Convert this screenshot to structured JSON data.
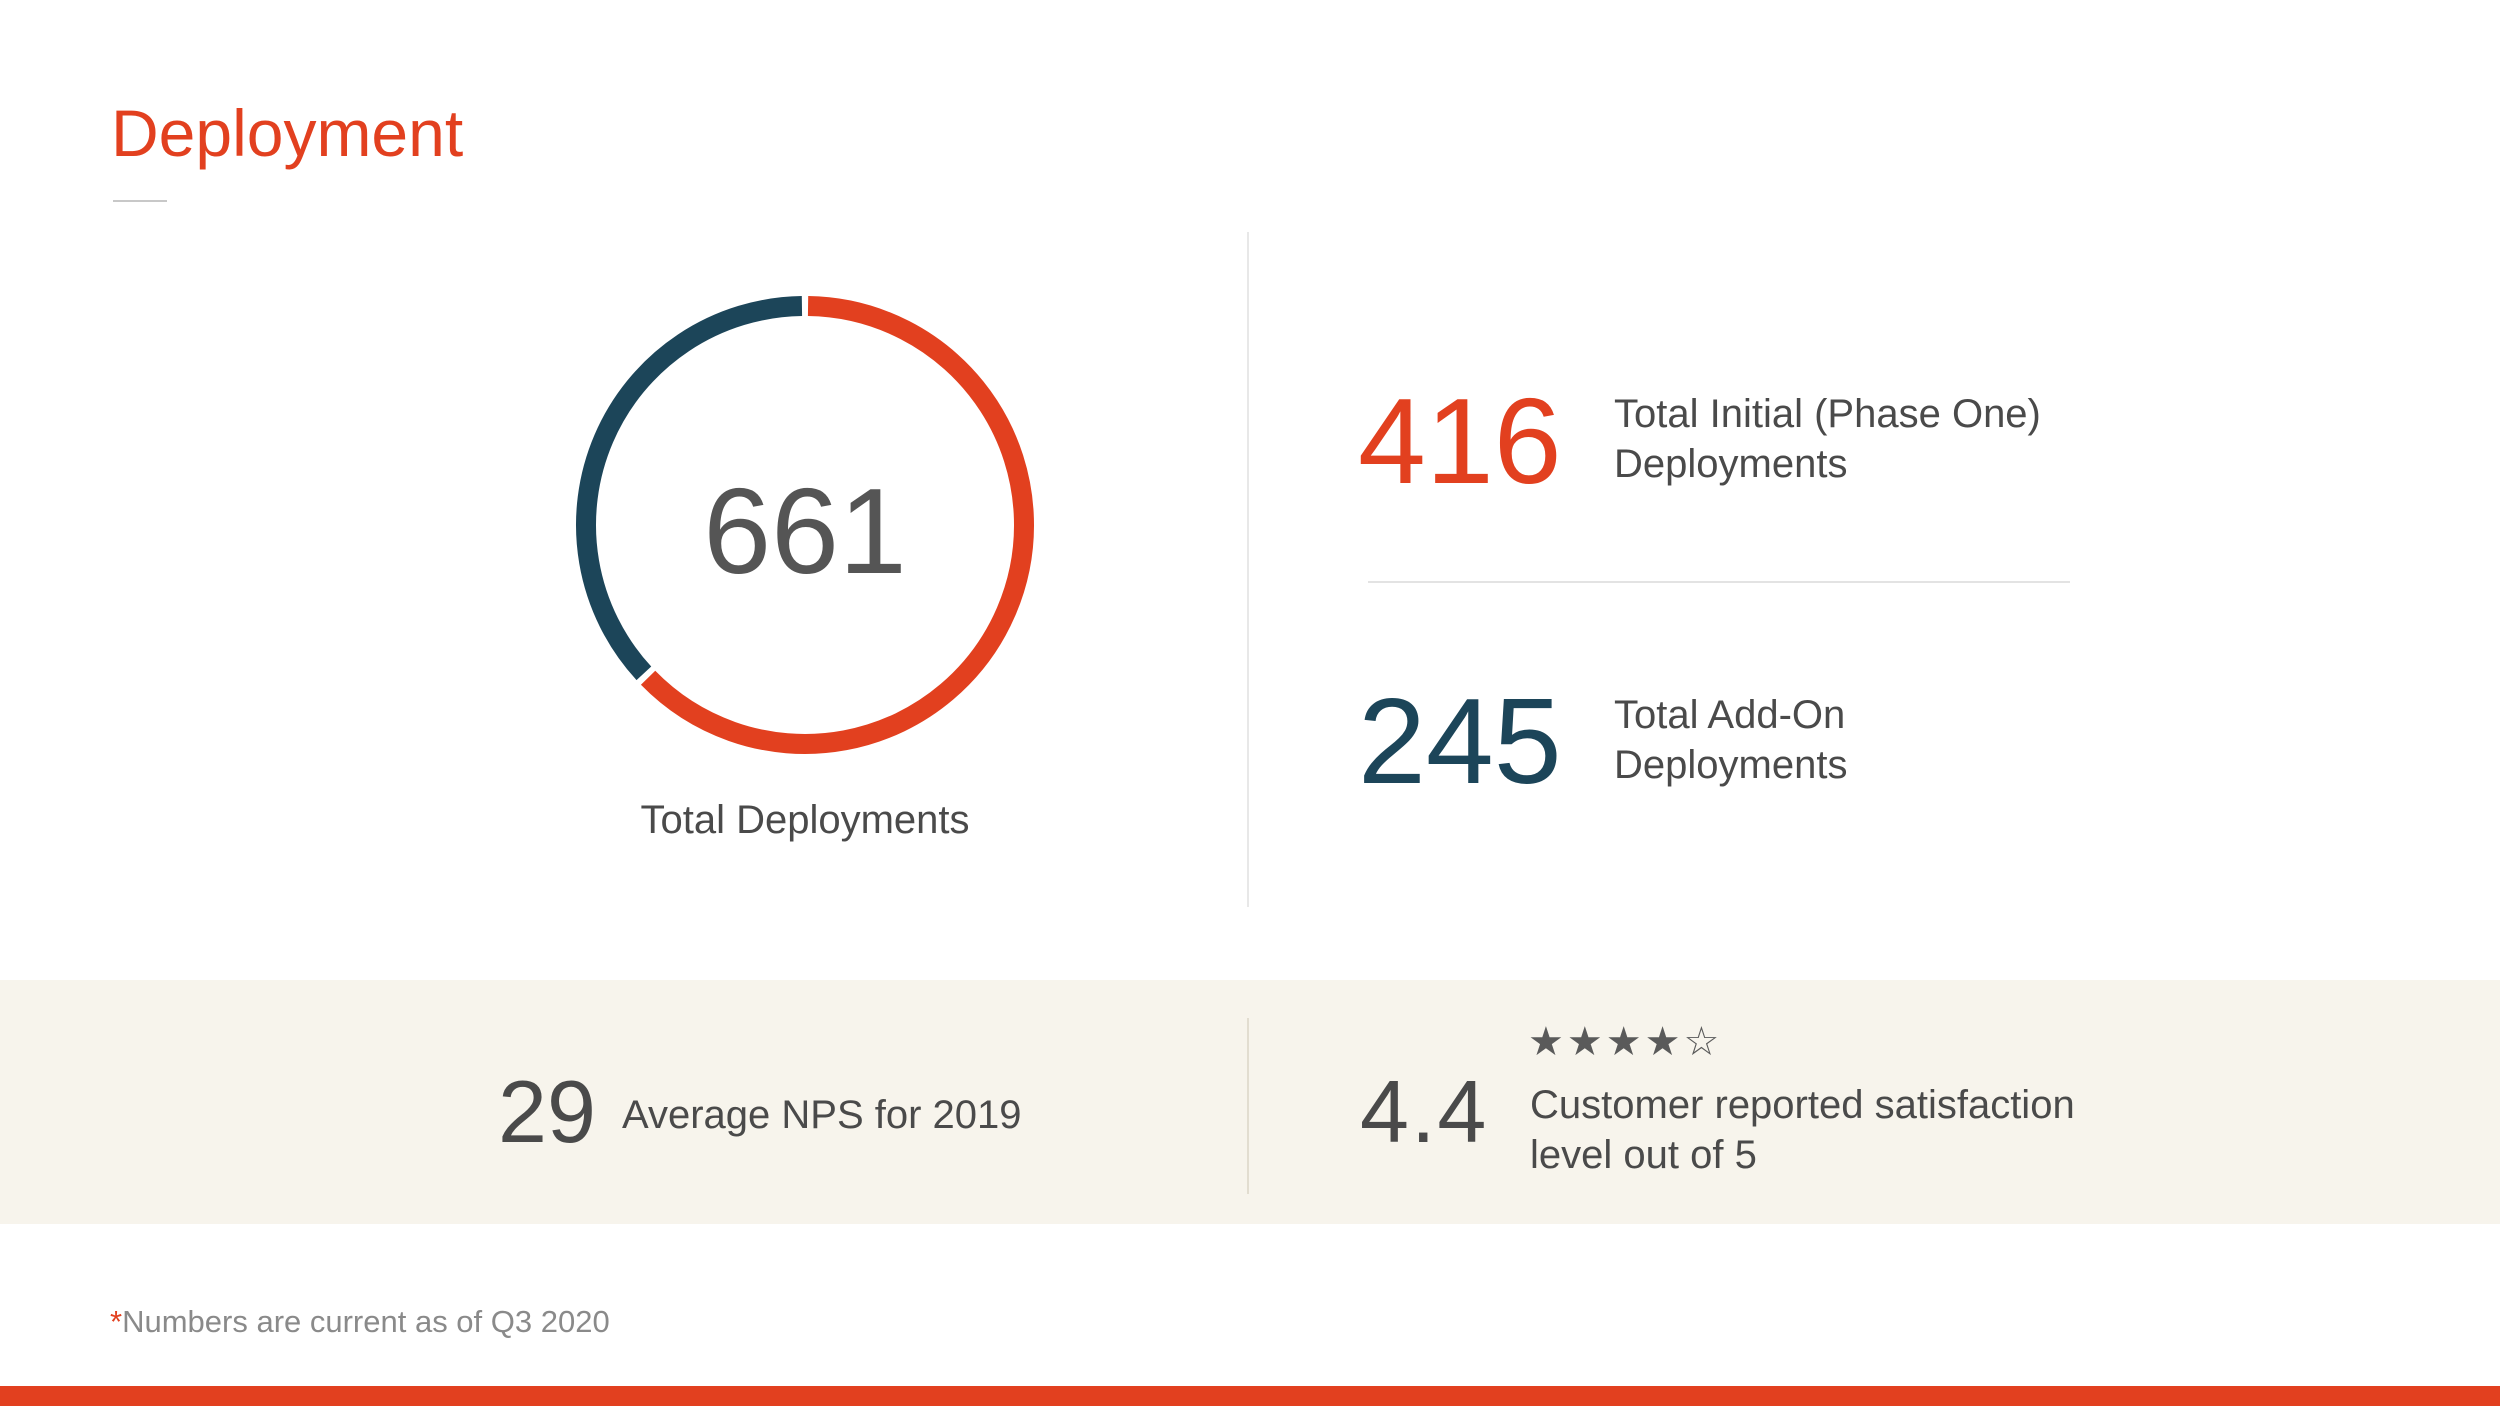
{
  "title": "Deployment",
  "colors": {
    "accent": "#e2401f",
    "navy": "#1c4559",
    "band_bg": "#f7f4ec"
  },
  "donut": {
    "total": "661",
    "label": "Total Deployments",
    "segments": [
      {
        "name": "initial",
        "value": 416,
        "color": "#e2401f"
      },
      {
        "name": "addon",
        "value": 245,
        "color": "#1c4559"
      }
    ]
  },
  "stats": {
    "initial": {
      "value": "416",
      "label_line1": "Total Initial (Phase One)",
      "label_line2": "Deployments"
    },
    "addon": {
      "value": "245",
      "label_line1": "Total Add-On",
      "label_line2": "Deployments"
    }
  },
  "band": {
    "nps": {
      "value": "29",
      "label": "Average NPS for 2019"
    },
    "satisfaction": {
      "value": "4.4",
      "stars": "★★★★☆",
      "rating": 4.4,
      "rating_max": 5,
      "label_line1": "Customer reported satisfaction",
      "label_line2": "level out of 5"
    }
  },
  "footnote": {
    "marker": "*",
    "text": "Numbers are current as of Q3 2020"
  }
}
